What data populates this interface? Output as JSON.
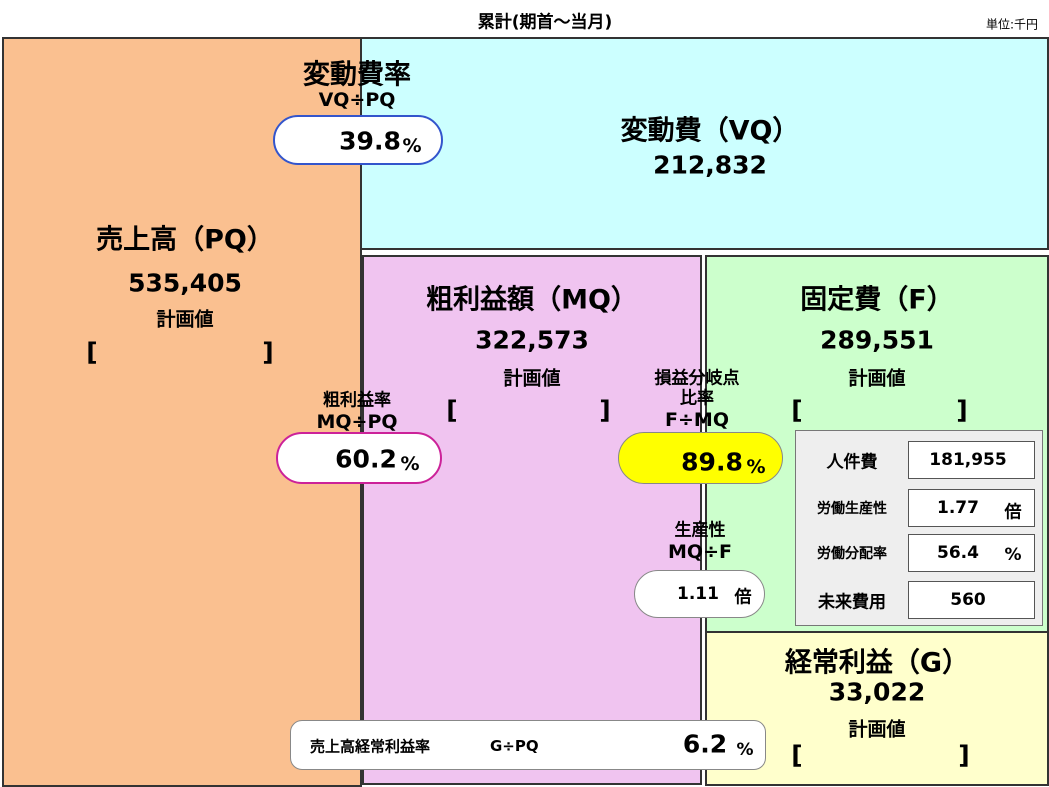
{
  "header": {
    "title": "累計(期首〜当月)",
    "unit": "単位:千円"
  },
  "sales": {
    "label": "売上高（PQ）",
    "value": "535,405",
    "plan_label": "計画値",
    "bracket_open": "[",
    "bracket_close": "]"
  },
  "variable_cost": {
    "label": "変動費（VQ）",
    "value": "212,832"
  },
  "variable_cost_ratio": {
    "label": "変動費率",
    "formula": "VQ÷PQ",
    "value": 39.8,
    "unit": "%"
  },
  "gross_profit": {
    "label": "粗利益額（MQ）",
    "value": "322,573",
    "plan_label": "計画値",
    "bracket_open": "[",
    "bracket_close": "]"
  },
  "gross_profit_ratio": {
    "label": "粗利益率",
    "formula": "MQ÷PQ",
    "value": 60.2,
    "unit": "%"
  },
  "fixed_cost": {
    "label": "固定費（F）",
    "value": "289,551",
    "plan_label": "計画値",
    "bracket_open": "[",
    "bracket_close": "]"
  },
  "break_even_ratio": {
    "label_lines": [
      "損益分岐点",
      "比率"
    ],
    "formula": "F÷MQ",
    "value": 89.8,
    "unit": "%"
  },
  "productivity": {
    "label": "生産性",
    "formula": "MQ÷F",
    "value": 1.11,
    "unit": "倍"
  },
  "fixed_cost_detail": {
    "rows": [
      {
        "label": "人件費",
        "value": "181,955"
      },
      {
        "label": "労働生産性",
        "value": 1.77,
        "unit": "倍"
      },
      {
        "label": "労働分配率",
        "value": 56.4,
        "unit": "%"
      },
      {
        "label": "未来費用",
        "value": 560
      }
    ]
  },
  "ordinary_profit": {
    "label": "経常利益（G）",
    "value": "33,022",
    "plan_label": "計画値",
    "bracket_open": "[",
    "bracket_close": "]"
  },
  "ordinary_profit_ratio": {
    "label": "売上高経常利益率",
    "formula": "G÷PQ",
    "value": 6.2,
    "unit": "%"
  }
}
